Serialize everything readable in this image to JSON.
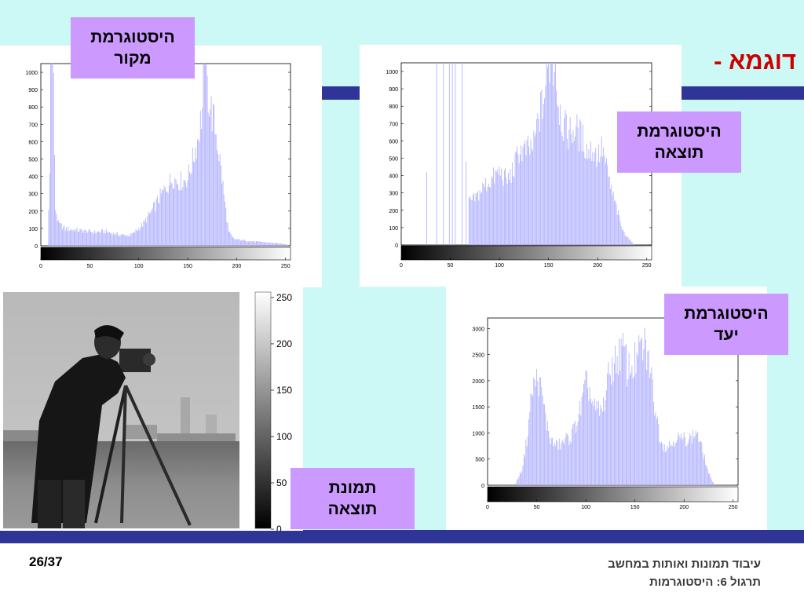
{
  "slide": {
    "title": "דוגמא -",
    "page": "26/37",
    "footer_line1": "עיבוד תמונות ואותות במחשב",
    "footer_line2": "תרגול 6: היסטוגרמות"
  },
  "labels": {
    "source": [
      "היסטוגרמת",
      "מקור"
    ],
    "result": [
      "היסטוגרמת",
      "תוצאה"
    ],
    "target": [
      "היסטוגרמת",
      "יעד"
    ],
    "image": [
      "תמונת",
      "תוצאה"
    ]
  },
  "colors": {
    "background": "#ccf8f5",
    "band": "#2f3497",
    "label_bg": "#cc99ff",
    "bars": "#b3b3ff",
    "title": "#cc0000"
  },
  "colorbar_ticks": [
    "250",
    "200",
    "150",
    "100",
    "50",
    "0"
  ],
  "chart_data": [
    {
      "type": "bar",
      "name": "source",
      "x_ticks": [
        0,
        50,
        100,
        150,
        200,
        250
      ],
      "y_ticks": [
        0,
        100,
        200,
        300,
        400,
        500,
        600,
        700,
        800,
        900,
        1000
      ],
      "ylim": [
        0,
        1050
      ],
      "xlim": [
        0,
        255
      ],
      "bar_color": "#b3b3ff",
      "grid": false,
      "profile": [
        [
          0,
          0
        ],
        [
          7,
          0
        ],
        [
          9,
          420
        ],
        [
          10,
          1050
        ],
        [
          13,
          1050
        ],
        [
          14,
          480
        ],
        [
          15,
          220
        ],
        [
          18,
          130
        ],
        [
          25,
          100
        ],
        [
          40,
          90
        ],
        [
          55,
          80
        ],
        [
          65,
          85
        ],
        [
          80,
          65
        ],
        [
          90,
          60
        ],
        [
          95,
          75
        ],
        [
          105,
          130
        ],
        [
          115,
          220
        ],
        [
          122,
          290
        ],
        [
          130,
          360
        ],
        [
          135,
          400
        ],
        [
          140,
          380
        ],
        [
          145,
          380
        ],
        [
          150,
          400
        ],
        [
          155,
          500
        ],
        [
          160,
          620
        ],
        [
          165,
          800
        ],
        [
          167,
          1050
        ],
        [
          172,
          850
        ],
        [
          178,
          700
        ],
        [
          183,
          500
        ],
        [
          188,
          250
        ],
        [
          192,
          80
        ],
        [
          197,
          40
        ],
        [
          210,
          30
        ],
        [
          230,
          20
        ],
        [
          250,
          10
        ],
        [
          255,
          0
        ]
      ],
      "spikes": [
        [
          10,
          1050
        ],
        [
          11,
          1050
        ],
        [
          12,
          1050
        ],
        [
          166,
          1050
        ],
        [
          168,
          1050
        ]
      ]
    },
    {
      "type": "bar",
      "name": "result",
      "x_ticks": [
        0,
        50,
        100,
        150,
        200,
        250
      ],
      "y_ticks": [
        0,
        100,
        200,
        300,
        400,
        500,
        600,
        700,
        800,
        900,
        1000
      ],
      "ylim": [
        0,
        1050
      ],
      "xlim": [
        0,
        255
      ],
      "bar_color": "#b3b3ff",
      "grid": false,
      "sparse_bars": [
        [
          26,
          420
        ],
        [
          36,
          1050
        ],
        [
          43,
          1050
        ],
        [
          49,
          1050
        ],
        [
          52,
          1050
        ],
        [
          55,
          1050
        ],
        [
          62,
          1050
        ],
        [
          66,
          480
        ]
      ],
      "profile": [
        [
          68,
          0
        ],
        [
          69,
          250
        ],
        [
          75,
          270
        ],
        [
          85,
          350
        ],
        [
          95,
          400
        ],
        [
          100,
          430
        ],
        [
          108,
          380
        ],
        [
          115,
          450
        ],
        [
          120,
          560
        ],
        [
          125,
          550
        ],
        [
          130,
          560
        ],
        [
          135,
          580
        ],
        [
          140,
          750
        ],
        [
          145,
          850
        ],
        [
          150,
          1050
        ],
        [
          156,
          1050
        ],
        [
          160,
          850
        ],
        [
          165,
          700
        ],
        [
          170,
          660
        ],
        [
          178,
          680
        ],
        [
          185,
          620
        ],
        [
          190,
          550
        ],
        [
          195,
          560
        ],
        [
          200,
          520
        ],
        [
          205,
          570
        ],
        [
          210,
          420
        ],
        [
          215,
          300
        ],
        [
          220,
          200
        ],
        [
          225,
          90
        ],
        [
          230,
          50
        ],
        [
          235,
          15
        ],
        [
          238,
          0
        ]
      ],
      "spikes": [
        [
          148,
          1050
        ],
        [
          152,
          1050
        ],
        [
          154,
          1050
        ],
        [
          157,
          1050
        ]
      ]
    },
    {
      "type": "bar",
      "name": "target",
      "x_ticks": [
        0,
        50,
        100,
        150,
        200,
        250
      ],
      "y_ticks": [
        0,
        500,
        1000,
        1500,
        2000,
        2500,
        3000
      ],
      "ylim": [
        0,
        3200
      ],
      "xlim": [
        0,
        255
      ],
      "bar_color": "#b3b3ff",
      "grid": false,
      "profile": [
        [
          0,
          0
        ],
        [
          28,
          0
        ],
        [
          30,
          100
        ],
        [
          35,
          300
        ],
        [
          40,
          900
        ],
        [
          45,
          1800
        ],
        [
          49,
          2050
        ],
        [
          52,
          2050
        ],
        [
          56,
          1700
        ],
        [
          60,
          1200
        ],
        [
          65,
          850
        ],
        [
          70,
          780
        ],
        [
          75,
          800
        ],
        [
          80,
          900
        ],
        [
          85,
          950
        ],
        [
          90,
          1200
        ],
        [
          95,
          1500
        ],
        [
          100,
          1950
        ],
        [
          103,
          1900
        ],
        [
          108,
          1500
        ],
        [
          112,
          1450
        ],
        [
          117,
          1450
        ],
        [
          122,
          2000
        ],
        [
          126,
          2300
        ],
        [
          130,
          2400
        ],
        [
          135,
          2600
        ],
        [
          140,
          2600
        ],
        [
          142,
          2250
        ],
        [
          148,
          2350
        ],
        [
          153,
          2500
        ],
        [
          156,
          2650
        ],
        [
          160,
          2700
        ],
        [
          165,
          2350
        ],
        [
          170,
          1600
        ],
        [
          175,
          1000
        ],
        [
          180,
          750
        ],
        [
          187,
          800
        ],
        [
          192,
          950
        ],
        [
          196,
          900
        ],
        [
          201,
          900
        ],
        [
          206,
          920
        ],
        [
          210,
          950
        ],
        [
          212,
          1100
        ],
        [
          215,
          900
        ],
        [
          220,
          600
        ],
        [
          224,
          300
        ],
        [
          228,
          100
        ],
        [
          232,
          0
        ],
        [
          255,
          0
        ]
      ]
    }
  ]
}
